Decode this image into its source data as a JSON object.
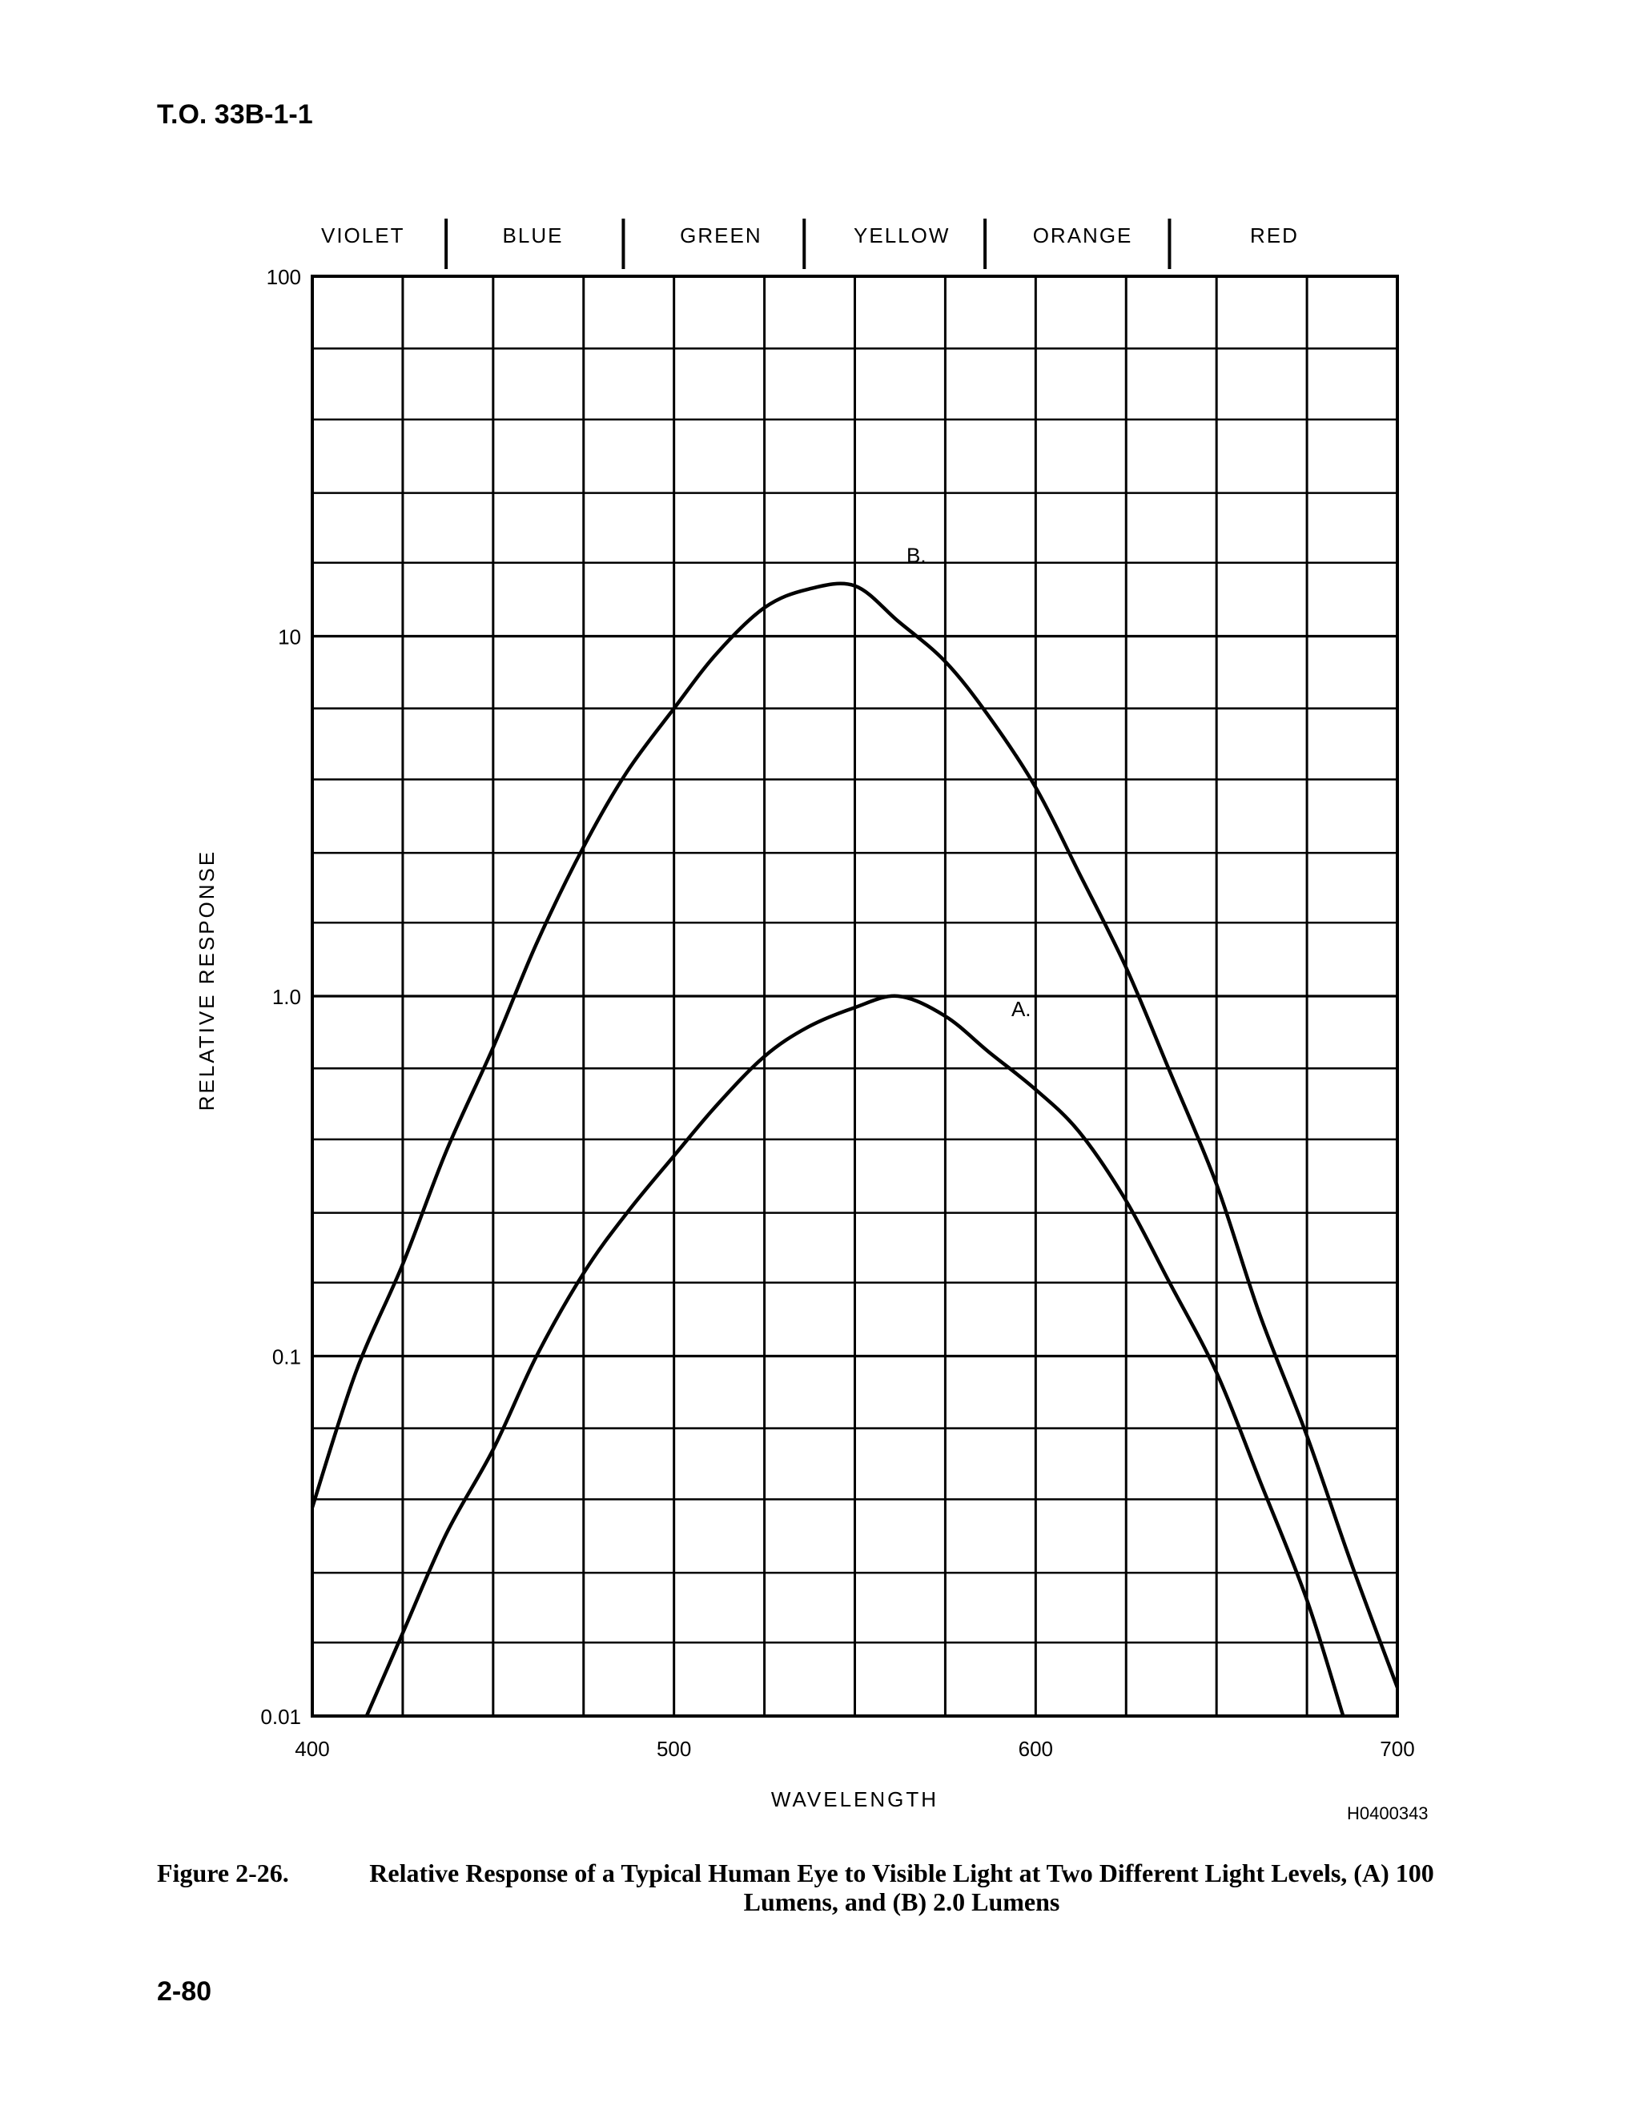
{
  "document": {
    "header": "T.O. 33B-1-1",
    "page_number": "2-80",
    "figure_code": "H0400343",
    "caption_label": "Figure 2-26.",
    "caption_text": "Relative Response of a Typical Human Eye to Visible Light at Two Different Light Levels, (A) 100 Lumens, and (B) 2.0 Lumens"
  },
  "chart_data": {
    "type": "line",
    "title": "",
    "xlabel": "WAVELENGTH",
    "ylabel": "RELATIVE RESPONSE",
    "xlim": [
      400,
      700
    ],
    "ylim": [
      0.01,
      100
    ],
    "yscale": "log",
    "grid": true,
    "x_major_ticks": [
      400,
      500,
      600,
      700
    ],
    "x_tick_labels": [
      "400",
      "500",
      "600",
      "700"
    ],
    "x_grid_lines": [
      400,
      425,
      450,
      475,
      500,
      525,
      550,
      575,
      600,
      625,
      650,
      675,
      700
    ],
    "y_major_ticks": [
      0.01,
      0.1,
      1.0,
      10,
      100
    ],
    "y_tick_labels": [
      "0.01",
      "0.1",
      "1.0",
      "10",
      "100"
    ],
    "color_bands": [
      {
        "label": "VIOLET",
        "center": 414
      },
      {
        "label": "BLUE",
        "center": 461
      },
      {
        "label": "GREEN",
        "center": 513
      },
      {
        "label": "YELLOW",
        "center": 563
      },
      {
        "label": "ORANGE",
        "center": 613
      },
      {
        "label": "RED",
        "center": 666
      }
    ],
    "band_boundaries": [
      437,
      486,
      536,
      586,
      637
    ],
    "series": [
      {
        "name": "A.",
        "label_at": {
          "x": 596,
          "y": 0.88
        },
        "points": [
          [
            415,
            0.01
          ],
          [
            425,
            0.017
          ],
          [
            437,
            0.032
          ],
          [
            450,
            0.055
          ],
          [
            462,
            0.1
          ],
          [
            475,
            0.17
          ],
          [
            487,
            0.25
          ],
          [
            500,
            0.36
          ],
          [
            512,
            0.5
          ],
          [
            525,
            0.68
          ],
          [
            537,
            0.82
          ],
          [
            550,
            0.93
          ],
          [
            562,
            1.0
          ],
          [
            575,
            0.88
          ],
          [
            587,
            0.7
          ],
          [
            600,
            0.55
          ],
          [
            612,
            0.42
          ],
          [
            625,
            0.27
          ],
          [
            637,
            0.16
          ],
          [
            650,
            0.09
          ],
          [
            662,
            0.045
          ],
          [
            675,
            0.021
          ],
          [
            685,
            0.01
          ]
        ]
      },
      {
        "name": "B.",
        "label_at": {
          "x": 567,
          "y": 16
        },
        "points": [
          [
            400,
            0.038
          ],
          [
            412,
            0.09
          ],
          [
            425,
            0.18
          ],
          [
            437,
            0.37
          ],
          [
            450,
            0.72
          ],
          [
            462,
            1.4
          ],
          [
            475,
            2.6
          ],
          [
            487,
            4.2
          ],
          [
            500,
            6.3
          ],
          [
            512,
            9.0
          ],
          [
            525,
            12.0
          ],
          [
            537,
            13.5
          ],
          [
            550,
            13.8
          ],
          [
            562,
            11.0
          ],
          [
            575,
            8.5
          ],
          [
            587,
            6.0
          ],
          [
            600,
            3.8
          ],
          [
            612,
            2.2
          ],
          [
            625,
            1.2
          ],
          [
            637,
            0.62
          ],
          [
            650,
            0.3
          ],
          [
            662,
            0.13
          ],
          [
            675,
            0.06
          ],
          [
            687,
            0.027
          ],
          [
            700,
            0.012
          ]
        ]
      }
    ]
  }
}
